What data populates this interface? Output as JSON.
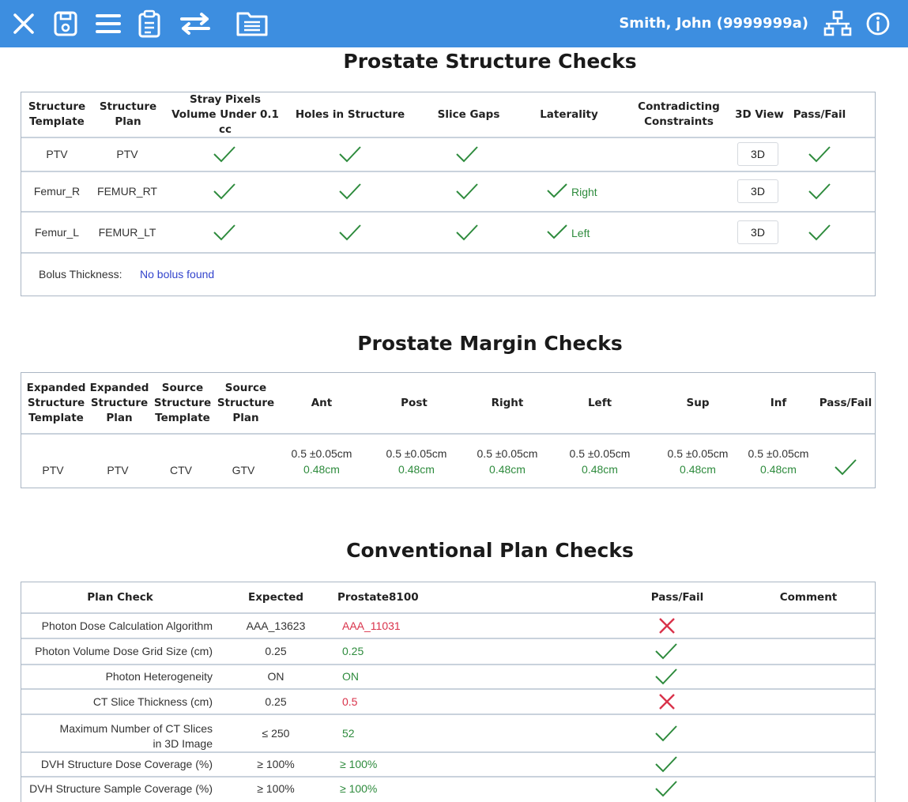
{
  "header": {
    "user": "Smith, John (9999999a)",
    "icons": [
      "close-icon",
      "save-icon",
      "menu-icon",
      "clipboard-icon",
      "swap-icon",
      "document-list-icon",
      "network-icon",
      "info-icon"
    ],
    "bar_color": "#3d8ee0"
  },
  "structure_checks": {
    "title": "Prostate Structure Checks",
    "headers": {
      "template_1": "Structure",
      "template_2": "Template",
      "plan_1": "Structure",
      "plan_2": "Plan",
      "stray_1": "Stray Pixels",
      "stray_2": "Volume Under 0.1 cc",
      "holes": "Holes in Structure",
      "slice_gaps": "Slice Gaps",
      "laterality": "Laterality",
      "contra_1": "Contradicting",
      "contra_2": "Constraints",
      "view3d": "3D View",
      "passfail": "Pass/Fail"
    },
    "rows": [
      {
        "template": "PTV",
        "plan": "PTV",
        "laterality": "",
        "view_button": "3D"
      },
      {
        "template": "Femur_R",
        "plan": "FEMUR_RT",
        "laterality": "Right",
        "view_button": "3D"
      },
      {
        "template": "Femur_L",
        "plan": "FEMUR_LT",
        "laterality": "Left",
        "view_button": "3D"
      }
    ],
    "bolus_label": "Bolus Thickness:",
    "bolus_value": "No bolus found"
  },
  "margin_checks": {
    "title": "Prostate Margin Checks",
    "headers": {
      "exp_template": [
        "Expanded",
        "Structure",
        "Template"
      ],
      "exp_plan": [
        "Expanded",
        "Structure",
        "Plan"
      ],
      "src_template": [
        "Source",
        "Structure",
        "Template"
      ],
      "src_plan": [
        "Source",
        "Structure",
        "Plan"
      ],
      "ant": "Ant",
      "post": "Post",
      "right": "Right",
      "left": "Left",
      "sup": "Sup",
      "inf": "Inf",
      "passfail": "Pass/Fail"
    },
    "row": {
      "exp_template": "PTV",
      "exp_plan": "PTV",
      "src_template": "CTV",
      "src_plan": "GTV",
      "expected": {
        "ant": "0.5 ±0.05cm",
        "post": "0.5 ±0.05cm",
        "right": "0.5 ±0.05cm",
        "left": "0.5 ±0.05cm",
        "sup": "0.5 ±0.05cm",
        "inf": "0.5 ±0.05cm"
      },
      "actual": {
        "ant": "0.48cm",
        "post": "0.48cm",
        "right": "0.48cm",
        "left": "0.48cm",
        "sup": "0.48cm",
        "inf": "0.48cm"
      }
    }
  },
  "plan_checks": {
    "title": "Conventional Plan Checks",
    "headers": {
      "check": "Plan Check",
      "expected": "Expected",
      "plan": "Prostate8100",
      "passfail": "Pass/Fail",
      "comment": "Comment"
    },
    "rows": [
      {
        "check": "Photon Dose Calculation Algorithm",
        "expected": "AAA_13623",
        "value": "AAA_11031",
        "pass": false
      },
      {
        "check": "Photon Volume Dose Grid Size (cm)",
        "expected": "0.25",
        "value": "0.25",
        "pass": true
      },
      {
        "check": "Photon Heterogeneity",
        "expected": "ON",
        "value": "ON",
        "pass": true
      },
      {
        "check": "CT Slice Thickness (cm)",
        "expected": "0.25",
        "value": "0.5",
        "pass": false
      },
      {
        "check_1": "Maximum Number of CT Slices",
        "check_2": "in 3D Image",
        "expected": "≤ 250",
        "value": "52",
        "pass": true
      },
      {
        "check": "DVH Structure Dose Coverage (%)",
        "expected": "≥ 100%",
        "value": "≥ 100%",
        "pass": true
      },
      {
        "check": "DVH Structure Sample Coverage (%)",
        "expected": "≥ 100%",
        "value": "≥ 100%",
        "pass": true
      }
    ]
  },
  "colors": {
    "pass": "#2e8b3d",
    "fail": "#d9324a",
    "link": "#3344cc",
    "border": "#aab6c4"
  }
}
